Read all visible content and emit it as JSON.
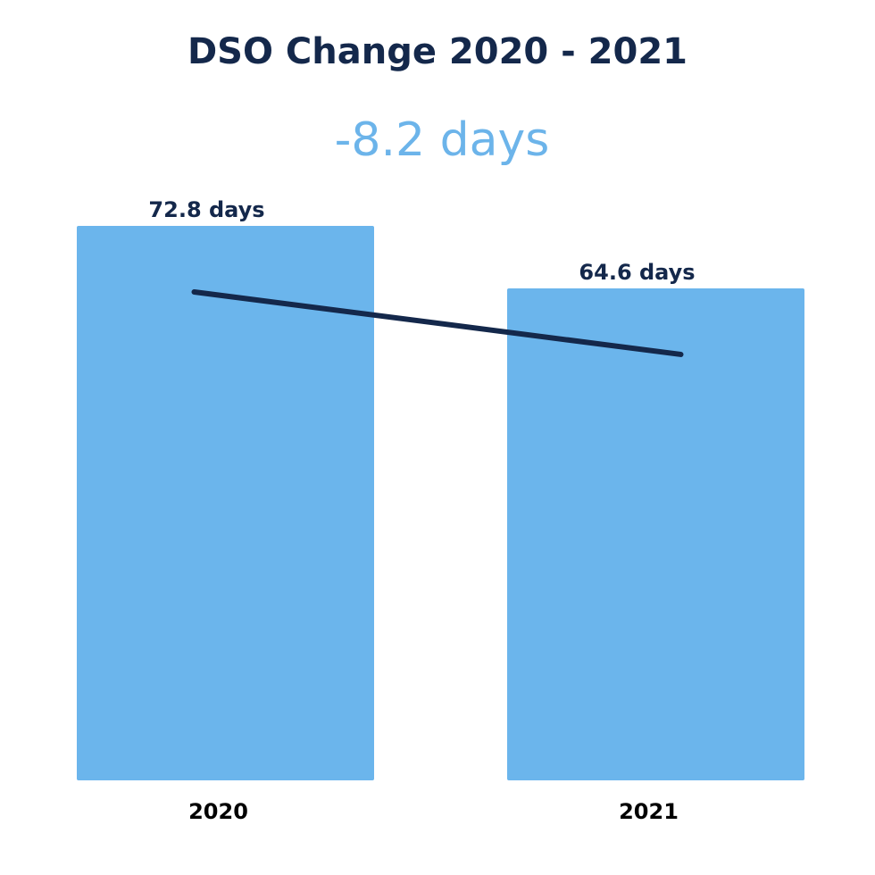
{
  "chart_data": {
    "type": "bar",
    "title": "DSO Change 2020 - 2021",
    "annotation": "-8.2 days",
    "categories": [
      "2020",
      "2021"
    ],
    "values": [
      72.8,
      64.6
    ],
    "value_labels": [
      "72.8 days",
      "64.6 days"
    ],
    "color": "#6bb5ec",
    "trend_line_color": "#14284b"
  }
}
